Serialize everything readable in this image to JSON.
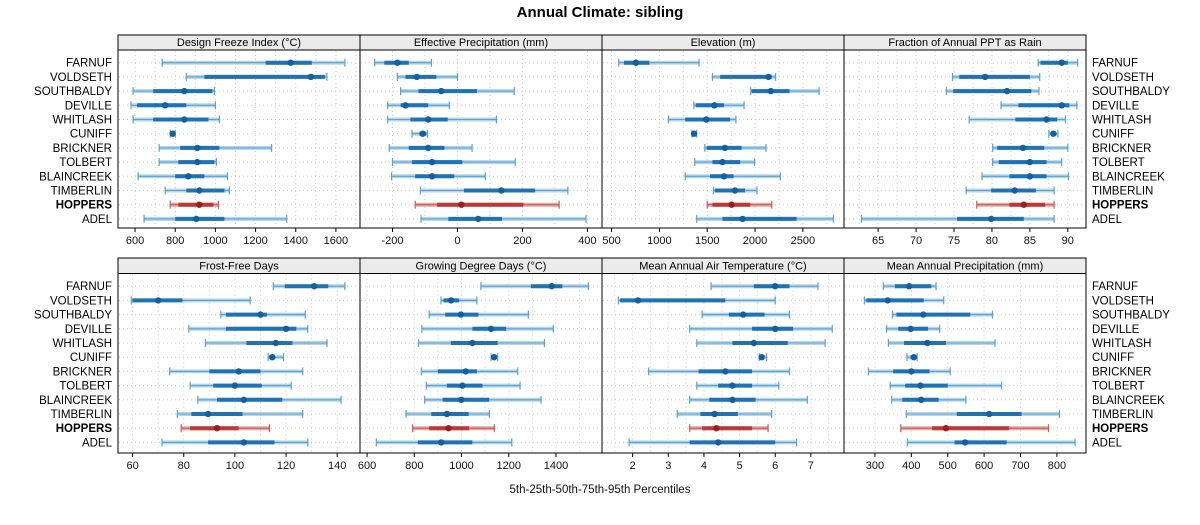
{
  "title": "Annual Climate: sibling",
  "caption": "5th-25th-50th-75th-95th Percentiles",
  "percentiles": [
    "5th",
    "25th",
    "50th",
    "75th",
    "95th"
  ],
  "stations": [
    {
      "name": "FARNUF",
      "highlight": false
    },
    {
      "name": "VOLDSETH",
      "highlight": false
    },
    {
      "name": "SOUTHBALDY",
      "highlight": false
    },
    {
      "name": "DEVILLE",
      "highlight": false
    },
    {
      "name": "WHITLASH",
      "highlight": false
    },
    {
      "name": "CUNIFF",
      "highlight": false
    },
    {
      "name": "BRICKNER",
      "highlight": false
    },
    {
      "name": "TOLBERT",
      "highlight": false
    },
    {
      "name": "BLAINCREEK",
      "highlight": false
    },
    {
      "name": "TIMBERLIN",
      "highlight": false
    },
    {
      "name": "HOPPERS",
      "highlight": true
    },
    {
      "name": "ADEL",
      "highlight": false
    }
  ],
  "colors": {
    "blue": {
      "line": "#5aa2d0",
      "band": "#b8d6ea",
      "box": "#1f72b3",
      "dot": "#14609f"
    },
    "red": {
      "line": "#cf5b55",
      "band": "#e2aaa6",
      "box": "#bc3936",
      "dot": "#97201e"
    },
    "grid": "#c8c8c8",
    "border": "#000000",
    "header_bg": "#ebebeb"
  },
  "chart_data": [
    {
      "type": "dotplot-interval",
      "title": "Design Freeze Index (°C)",
      "xlim": [
        515,
        1720
      ],
      "ticks": [
        600,
        800,
        1000,
        1200,
        1400,
        1600
      ],
      "grid_step": 100,
      "series": [
        [
          735,
          1250,
          1375,
          1480,
          1645
        ],
        [
          855,
          945,
          1475,
          1545,
          1555
        ],
        [
          590,
          690,
          845,
          985,
          995
        ],
        [
          580,
          610,
          750,
          855,
          1000
        ],
        [
          590,
          690,
          845,
          965,
          1020
        ],
        [
          775,
          782,
          787,
          792,
          800
        ],
        [
          720,
          825,
          910,
          1020,
          1280
        ],
        [
          720,
          815,
          910,
          995,
          1005
        ],
        [
          615,
          800,
          865,
          945,
          1060
        ],
        [
          750,
          855,
          920,
          1045,
          1070
        ],
        [
          775,
          815,
          920,
          990,
          1015
        ],
        [
          645,
          800,
          905,
          1045,
          1355
        ]
      ]
    },
    {
      "type": "dotplot-interval",
      "title": "Effective Precipitation (mm)",
      "xlim": [
        -300,
        445
      ],
      "ticks": [
        -200,
        0,
        200,
        400
      ],
      "grid_step": 100,
      "series": [
        [
          -255,
          -225,
          -185,
          -150,
          -80
        ],
        [
          -185,
          -160,
          -125,
          -65,
          0
        ],
        [
          -175,
          -120,
          -50,
          60,
          175
        ],
        [
          -215,
          -175,
          -160,
          -90,
          -25
        ],
        [
          -215,
          -145,
          -90,
          -30,
          120
        ],
        [
          -140,
          -117,
          -107,
          -96,
          -92
        ],
        [
          -210,
          -150,
          -90,
          -40,
          45
        ],
        [
          -200,
          -140,
          -78,
          15,
          178
        ],
        [
          -203,
          -130,
          -78,
          -10,
          86
        ],
        [
          -114,
          20,
          135,
          239,
          340
        ],
        [
          -130,
          -63,
          12,
          203,
          313
        ],
        [
          -112,
          -28,
          64,
          137,
          396
        ]
      ]
    },
    {
      "type": "dotplot-interval",
      "title": "Elevation (m)",
      "xlim": [
        400,
        2930
      ],
      "ticks": [
        500,
        1000,
        1500,
        2000,
        2500
      ],
      "grid_step": 250,
      "series": [
        [
          575,
          630,
          755,
          895,
          1415
        ],
        [
          1555,
          1635,
          2140,
          2175,
          2215
        ],
        [
          1955,
          1965,
          2165,
          2360,
          2670
        ],
        [
          1360,
          1380,
          1575,
          1675,
          1885
        ],
        [
          1095,
          1270,
          1490,
          1740,
          1800
        ],
        [
          1340,
          1352,
          1362,
          1375,
          1390
        ],
        [
          1475,
          1495,
          1685,
          1860,
          2115
        ],
        [
          1370,
          1555,
          1660,
          1845,
          1995
        ],
        [
          1270,
          1530,
          1675,
          1775,
          2265
        ],
        [
          1565,
          1580,
          1790,
          1895,
          2020
        ],
        [
          1500,
          1555,
          1755,
          1950,
          2175
        ],
        [
          1390,
          1660,
          1870,
          2435,
          2820
        ]
      ]
    },
    {
      "type": "dotplot-interval",
      "title": "Fraction of Annual PPT as Rain",
      "xlim": [
        60.5,
        92.4
      ],
      "ticks": [
        65,
        70,
        75,
        80,
        85,
        90
      ],
      "grid_step": 2.5,
      "series": [
        [
          86.1,
          86.4,
          89.2,
          90.0,
          91.3
        ],
        [
          74.8,
          75.7,
          79.1,
          85.0,
          86.3
        ],
        [
          74.0,
          74.9,
          82.0,
          85.2,
          86.2
        ],
        [
          81.2,
          83.5,
          89.2,
          90.2,
          91.2
        ],
        [
          77.0,
          83.1,
          87.2,
          88.6,
          89.7
        ],
        [
          87.5,
          87.8,
          88.1,
          88.4,
          88.7
        ],
        [
          80.1,
          80.7,
          84.1,
          86.9,
          90.0
        ],
        [
          80.1,
          80.9,
          85.0,
          87.2,
          89.2
        ],
        [
          78.7,
          82.3,
          85.0,
          87.2,
          90.1
        ],
        [
          76.6,
          79.9,
          83.0,
          85.8,
          88.2
        ],
        [
          78.0,
          82.3,
          84.2,
          87.0,
          88.2
        ],
        [
          62.8,
          75.4,
          79.9,
          84.2,
          88.2
        ]
      ]
    },
    {
      "type": "dotplot-interval",
      "title": "Frost-Free Days",
      "xlim": [
        54.3,
        148.9
      ],
      "ticks": [
        60,
        80,
        100,
        120,
        140
      ],
      "grid_step": 10,
      "series": [
        [
          115,
          119.5,
          131,
          136.5,
          143
        ],
        [
          59.5,
          60,
          70,
          79.5,
          106
        ],
        [
          94.5,
          96.5,
          110,
          112.5,
          127.5
        ],
        [
          82,
          96.5,
          120,
          124,
          128.5
        ],
        [
          88.5,
          104.5,
          116,
          122.5,
          136
        ],
        [
          113,
          113.7,
          114.6,
          115.6,
          119
        ],
        [
          74.5,
          90,
          101.5,
          110,
          126.5
        ],
        [
          82.5,
          91.5,
          100,
          110.5,
          122
        ],
        [
          85.5,
          93,
          103.5,
          118.5,
          141.5
        ],
        [
          77.5,
          83,
          89.5,
          103,
          126.5
        ],
        [
          79,
          82.5,
          93,
          101.5,
          113.5
        ],
        [
          71.5,
          89.5,
          103.5,
          115.5,
          128.5
        ]
      ]
    },
    {
      "type": "dotplot-interval",
      "title": "Growing Degree Days (°C)",
      "xlim": [
        570,
        1595
      ],
      "ticks": [
        600,
        800,
        1000,
        1200,
        1400
      ],
      "grid_step": 100,
      "series": [
        [
          1082,
          1294,
          1382,
          1427,
          1537
        ],
        [
          913,
          924,
          956,
          990,
          1065
        ],
        [
          863,
          931,
          997,
          1072,
          1283
        ],
        [
          832,
          1046,
          1125,
          1189,
          1389
        ],
        [
          818,
          955,
          1046,
          1153,
          1351
        ],
        [
          1125,
          1132,
          1138,
          1145,
          1153
        ],
        [
          830,
          900,
          1018,
          1065,
          1238
        ],
        [
          851,
          938,
          1004,
          1089,
          1248
        ],
        [
          844,
          920,
          999,
          1117,
          1337
        ],
        [
          765,
          872,
          938,
          1030,
          1118
        ],
        [
          793,
          863,
          945,
          1032,
          1139
        ],
        [
          639,
          815,
          914,
          1046,
          1213
        ]
      ]
    },
    {
      "type": "dotplot-interval",
      "title": "Mean Annual Air Temperature (°C)",
      "xlim": [
        1.14,
        7.93
      ],
      "ticks": [
        2,
        3,
        4,
        5,
        6,
        7
      ],
      "grid_step": 0.5,
      "series": [
        [
          4.2,
          5.4,
          6.0,
          6.4,
          7.2
        ],
        [
          1.6,
          1.65,
          2.15,
          4.6,
          6.0
        ],
        [
          3.95,
          4.7,
          5.1,
          5.7,
          6.4
        ],
        [
          3.6,
          5.35,
          6.0,
          6.5,
          7.6
        ],
        [
          3.8,
          4.8,
          5.4,
          6.35,
          7.4
        ],
        [
          5.55,
          5.58,
          5.62,
          5.67,
          5.76
        ],
        [
          2.45,
          3.85,
          4.6,
          5.35,
          6.4
        ],
        [
          3.8,
          4.4,
          4.8,
          5.35,
          6.1
        ],
        [
          3.6,
          4.15,
          4.8,
          5.45,
          6.9
        ],
        [
          3.25,
          3.9,
          4.3,
          4.95,
          5.9
        ],
        [
          3.6,
          3.95,
          4.35,
          5.35,
          5.8
        ],
        [
          1.9,
          3.6,
          4.4,
          6.0,
          6.6
        ]
      ]
    },
    {
      "type": "dotplot-interval",
      "title": "Mean Annual Precipitation (mm)",
      "xlim": [
        215,
        880
      ],
      "ticks": [
        300,
        400,
        500,
        600,
        700,
        800
      ],
      "grid_step": 100,
      "series": [
        [
          323,
          355,
          394,
          455,
          468
        ],
        [
          271,
          276,
          335,
          434,
          489
        ],
        [
          348,
          359,
          433,
          562,
          623
        ],
        [
          332,
          364,
          398,
          446,
          478
        ],
        [
          337,
          380,
          444,
          495,
          630
        ],
        [
          388,
          398,
          407,
          412,
          416
        ],
        [
          282,
          350,
          400,
          450,
          507
        ],
        [
          342,
          383,
          425,
          500,
          648
        ],
        [
          346,
          375,
          427,
          475,
          550
        ],
        [
          386,
          525,
          614,
          703,
          807
        ],
        [
          371,
          457,
          495,
          668,
          777
        ],
        [
          389,
          519,
          548,
          662,
          850
        ]
      ]
    }
  ]
}
